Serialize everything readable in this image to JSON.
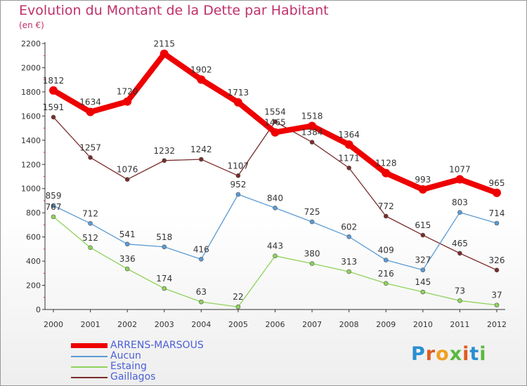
{
  "title": "Evolution du Montant de la Dette par Habitant",
  "subtitle": "(en €)",
  "brand": "Proxiti",
  "chart_data": {
    "type": "line",
    "x": [
      "2000",
      "2001",
      "2002",
      "2003",
      "2004",
      "2005",
      "2006",
      "2007",
      "2008",
      "2009",
      "2010",
      "2011",
      "2012"
    ],
    "ylim": [
      0,
      2200
    ],
    "yticks": [
      0,
      200,
      400,
      600,
      800,
      1000,
      1200,
      1400,
      1600,
      1800,
      2000,
      2200
    ],
    "grid": false,
    "legend": "bottom-left",
    "series": [
      {
        "name": "ARRENS-MARSOUS",
        "color": "#ee0000",
        "values": [
          1812,
          1634,
          1720,
          2115,
          1902,
          1713,
          1465,
          1518,
          1364,
          1128,
          993,
          1077,
          965
        ]
      },
      {
        "name": "Aucun",
        "color": "#5b9bd5",
        "values": [
          859,
          712,
          541,
          518,
          416,
          952,
          840,
          725,
          602,
          409,
          327,
          803,
          714
        ]
      },
      {
        "name": "Estaing",
        "color": "#8ed35a",
        "values": [
          767,
          512,
          336,
          174,
          63,
          22,
          443,
          380,
          313,
          216,
          145,
          73,
          37
        ]
      },
      {
        "name": "Gaillagos",
        "color": "#7a2b2b",
        "values": [
          1591,
          1257,
          1076,
          1232,
          1242,
          1107,
          1554,
          1384,
          1171,
          772,
          615,
          465,
          326
        ]
      }
    ]
  }
}
